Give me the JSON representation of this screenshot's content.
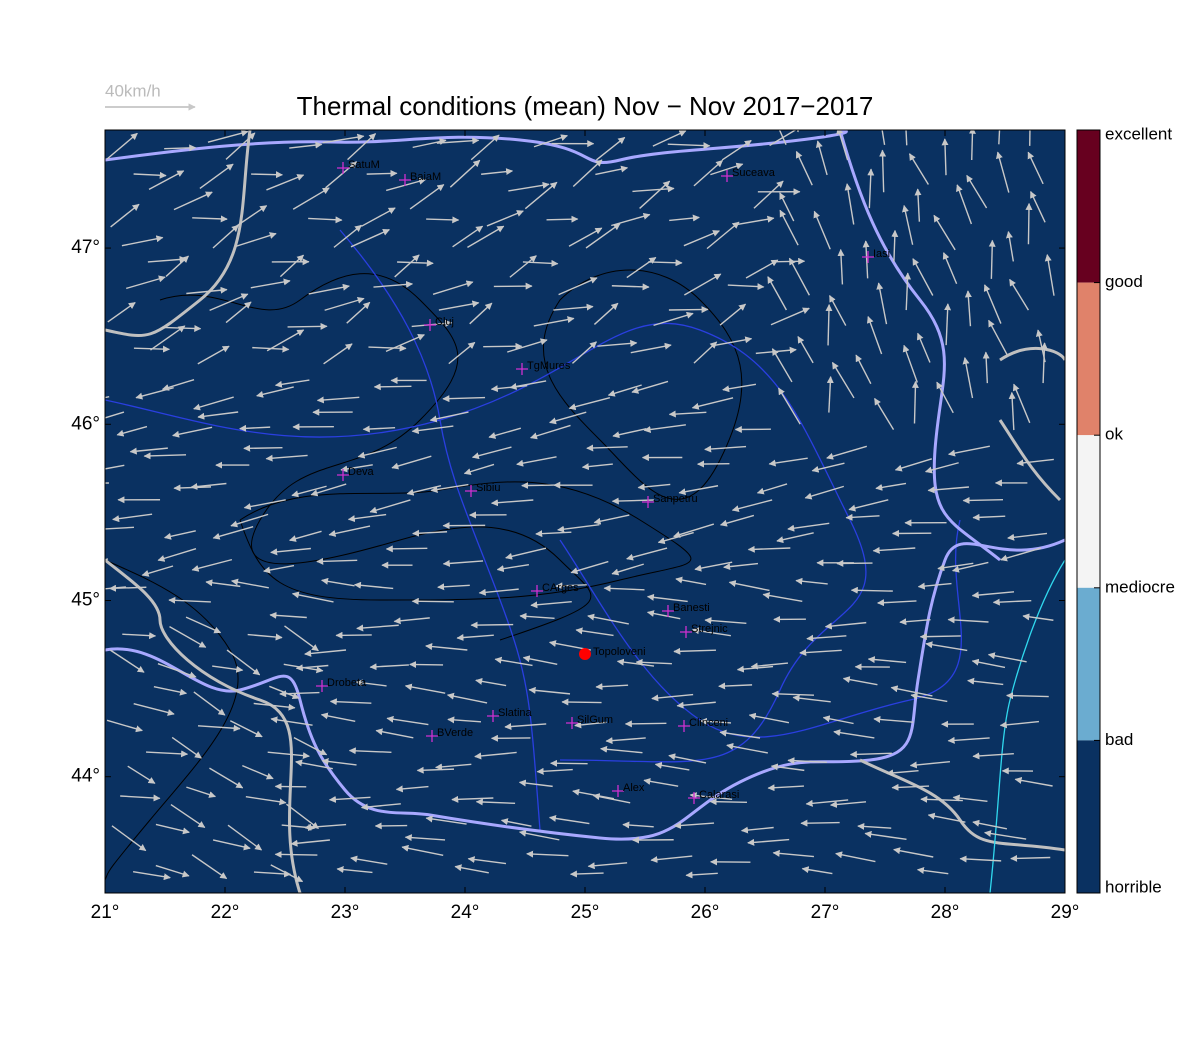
{
  "map": {
    "title": "Thermal conditions (mean) Nov − Nov  2017−2017",
    "scale_label": "40km/h",
    "xlim": [
      21,
      29
    ],
    "ylim": [
      43.34,
      47.67
    ],
    "xticks": [
      {
        "value": 21,
        "label": "21°"
      },
      {
        "value": 22,
        "label": "22°"
      },
      {
        "value": 23,
        "label": "23°"
      },
      {
        "value": 24,
        "label": "24°"
      },
      {
        "value": 25,
        "label": "25°"
      },
      {
        "value": 26,
        "label": "26°"
      },
      {
        "value": 27,
        "label": "27°"
      },
      {
        "value": 28,
        "label": "28°"
      },
      {
        "value": 29,
        "label": "29°"
      }
    ],
    "yticks": [
      {
        "value": 44,
        "label": "44°"
      },
      {
        "value": 45,
        "label": "45°"
      },
      {
        "value": 46,
        "label": "46°"
      },
      {
        "value": 47,
        "label": "47°"
      }
    ],
    "colorbar": {
      "labels": [
        "excellent",
        "good",
        "ok",
        "mediocre",
        "bad",
        "horrible"
      ],
      "colors": [
        "#67001f",
        "#e0826a",
        "#f4f4f4",
        "#6bacd0",
        "#0a3161"
      ]
    },
    "cities": [
      "SatuM",
      "BaiaM",
      "Suceava",
      "Iasi",
      "Cluj",
      "TgMures",
      "Deva",
      "Sibiu",
      "Sanpetru",
      "CArges",
      "Banesti",
      "Strejnic",
      "Drobeta",
      "Slatina",
      "SilGum",
      "Clinceni",
      "BVerde",
      "Alex",
      "Calarasi"
    ],
    "marker": "Topoloveni"
  }
}
